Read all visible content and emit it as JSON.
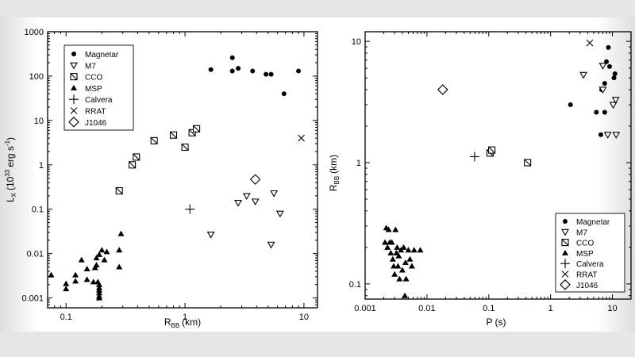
{
  "chart_data": [
    {
      "type": "scatter",
      "xlabel": "R",
      "xlabel_sub": "BB",
      "xlabel_unit": "(km)",
      "ylabel": "L",
      "ylabel_sub": "X",
      "ylabel_unit": "(10",
      "ylabel_exp": "33",
      "ylabel_tail": "erg s",
      "ylabel_exp2": "-1",
      "ylabel_close": ")",
      "xscale": "log",
      "yscale": "log",
      "xlim": [
        0.07,
        13
      ],
      "ylim": [
        0.0006,
        1000
      ],
      "xticks": [
        0.1,
        1,
        10
      ],
      "xtick_labels": [
        "0.1",
        "1",
        "10"
      ],
      "yticks": [
        0.001,
        0.01,
        0.1,
        1,
        10,
        100,
        1000
      ],
      "ytick_labels": [
        "0.001",
        "0.01",
        "0.1",
        "1",
        "10",
        "100",
        "1000"
      ],
      "legend_position": "top-left",
      "series": [
        {
          "name": "Magnetar",
          "marker": "circle",
          "points": [
            [
              1.65,
              140
            ],
            [
              2.5,
              260
            ],
            [
              2.5,
              130
            ],
            [
              2.8,
              150
            ],
            [
              3.7,
              130
            ],
            [
              4.8,
              110
            ],
            [
              5.3,
              110
            ],
            [
              6.8,
              40
            ],
            [
              9.0,
              130
            ]
          ]
        },
        {
          "name": "M7",
          "marker": "triangle-down",
          "points": [
            [
              1.65,
              0.027
            ],
            [
              2.8,
              0.14
            ],
            [
              3.3,
              0.2
            ],
            [
              3.9,
              0.15
            ],
            [
              5.3,
              0.016
            ],
            [
              5.6,
              0.23
            ],
            [
              6.3,
              0.08
            ]
          ]
        },
        {
          "name": "CCO",
          "marker": "box-slash",
          "points": [
            [
              0.28,
              0.26
            ],
            [
              0.36,
              1.0
            ],
            [
              0.39,
              1.5
            ],
            [
              0.55,
              3.5
            ],
            [
              0.8,
              4.7
            ],
            [
              1.0,
              2.5
            ],
            [
              1.15,
              5.3
            ],
            [
              1.25,
              6.5
            ]
          ]
        },
        {
          "name": "MSP",
          "marker": "triangle-up",
          "points": [
            [
              0.075,
              0.0033
            ],
            [
              0.1,
              0.0021
            ],
            [
              0.1,
              0.0016
            ],
            [
              0.12,
              0.0033
            ],
            [
              0.12,
              0.0024
            ],
            [
              0.135,
              0.0072
            ],
            [
              0.15,
              0.0045
            ],
            [
              0.15,
              0.0026
            ],
            [
              0.17,
              0.0023
            ],
            [
              0.175,
              0.0048
            ],
            [
              0.18,
              0.008
            ],
            [
              0.18,
              0.0055
            ],
            [
              0.185,
              0.0023
            ],
            [
              0.19,
              0.002
            ],
            [
              0.19,
              0.0017
            ],
            [
              0.19,
              0.0015
            ],
            [
              0.19,
              0.0013
            ],
            [
              0.19,
              0.0011
            ],
            [
              0.19,
              0.001
            ],
            [
              0.2,
              0.012
            ],
            [
              0.21,
              0.0072
            ],
            [
              0.22,
              0.011
            ],
            [
              0.28,
              0.012
            ],
            [
              0.28,
              0.005
            ],
            [
              0.29,
              0.028
            ],
            [
              0.19,
              0.0095
            ]
          ]
        },
        {
          "name": "Calvera",
          "marker": "plus",
          "points": [
            [
              1.1,
              0.1
            ]
          ]
        },
        {
          "name": "RRAT",
          "marker": "x",
          "points": [
            [
              9.5,
              4.0
            ]
          ]
        },
        {
          "name": "J1046",
          "marker": "diamond",
          "points": [
            [
              3.9,
              0.47
            ]
          ]
        }
      ]
    },
    {
      "type": "scatter",
      "xlabel": "P (s)",
      "ylabel": "R",
      "ylabel_sub": "BB",
      "ylabel_unit": "(km)",
      "xscale": "log",
      "yscale": "log",
      "xlim": [
        0.001,
        20
      ],
      "ylim": [
        0.075,
        12
      ],
      "xticks": [
        0.001,
        0.01,
        0.1,
        1,
        10
      ],
      "xtick_labels": [
        "0.001",
        "0.01",
        "0.1",
        "1",
        "10"
      ],
      "yticks": [
        0.1,
        1,
        10
      ],
      "ytick_labels": [
        "0.1",
        "1",
        "10"
      ],
      "legend_position": "bottom-right",
      "series": [
        {
          "name": "Magnetar",
          "marker": "circle",
          "points": [
            [
              2.1,
              3.0
            ],
            [
              5.5,
              2.6
            ],
            [
              6.5,
              1.7
            ],
            [
              7.5,
              2.6
            ],
            [
              7.5,
              4.5
            ],
            [
              8.0,
              6.8
            ],
            [
              8.6,
              8.9
            ],
            [
              9.0,
              6.2
            ],
            [
              10.6,
              5.0
            ],
            [
              11.0,
              5.4
            ],
            [
              6.7,
              4.0
            ]
          ]
        },
        {
          "name": "M7",
          "marker": "triangle-down",
          "points": [
            [
              3.4,
              5.3
            ],
            [
              7.0,
              6.3
            ],
            [
              7.0,
              4.0
            ],
            [
              8.4,
              1.7
            ],
            [
              10.3,
              3.0
            ],
            [
              11.3,
              3.3
            ],
            [
              11.5,
              1.7
            ]
          ]
        },
        {
          "name": "CCO",
          "marker": "box-slash",
          "points": [
            [
              0.105,
              1.2
            ],
            [
              0.112,
              1.27
            ],
            [
              0.424,
              1.0
            ]
          ]
        },
        {
          "name": "MSP",
          "marker": "triangle-up",
          "points": [
            [
              0.0021,
              0.22
            ],
            [
              0.0022,
              0.29
            ],
            [
              0.0023,
              0.2
            ],
            [
              0.0024,
              0.28
            ],
            [
              0.0025,
              0.22
            ],
            [
              0.0026,
              0.18
            ],
            [
              0.0027,
              0.22
            ],
            [
              0.0028,
              0.16
            ],
            [
              0.0029,
              0.14
            ],
            [
              0.003,
              0.12
            ],
            [
              0.0031,
              0.28
            ],
            [
              0.0032,
              0.18
            ],
            [
              0.0033,
              0.2
            ],
            [
              0.0034,
              0.14
            ],
            [
              0.0035,
              0.17
            ],
            [
              0.0036,
              0.11
            ],
            [
              0.0038,
              0.19
            ],
            [
              0.004,
              0.13
            ],
            [
              0.0042,
              0.2
            ],
            [
              0.0044,
              0.08
            ],
            [
              0.0046,
              0.11
            ],
            [
              0.005,
              0.19
            ],
            [
              0.0053,
              0.16
            ],
            [
              0.0057,
              0.14
            ],
            [
              0.0062,
              0.19
            ],
            [
              0.0078,
              0.19
            ],
            [
              0.0045,
              0.15
            ]
          ]
        },
        {
          "name": "Calvera",
          "marker": "plus",
          "points": [
            [
              0.059,
              1.12
            ]
          ]
        },
        {
          "name": "RRAT",
          "marker": "x",
          "points": [
            [
              4.3,
              9.7
            ]
          ]
        },
        {
          "name": "J1046",
          "marker": "diamond",
          "points": [
            [
              0.018,
              4.0
            ]
          ]
        }
      ]
    }
  ]
}
